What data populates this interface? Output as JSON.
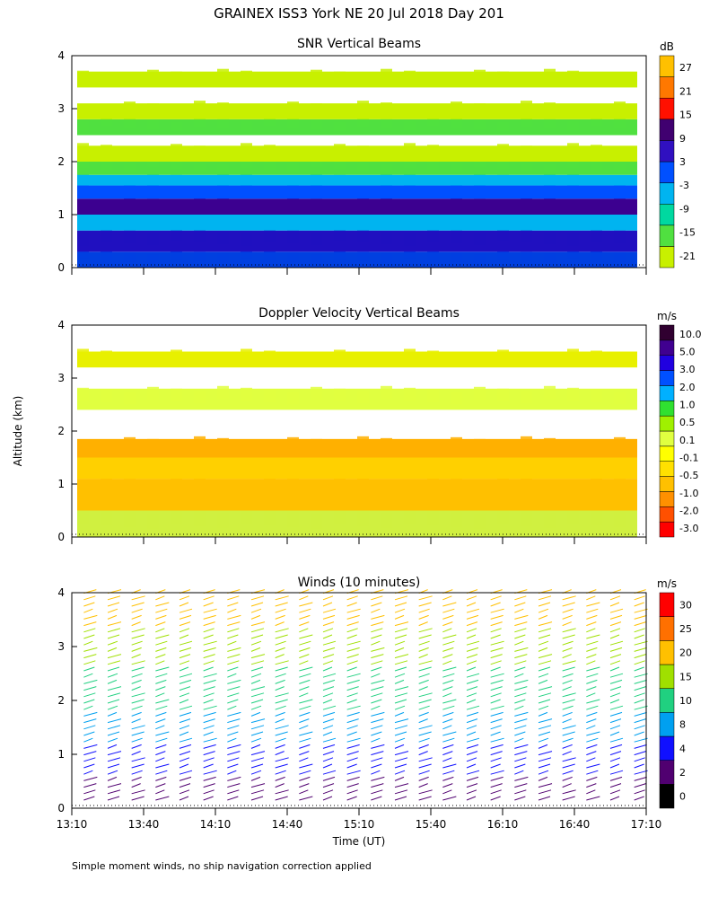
{
  "title": "GRAINEX ISS3 York NE  20 Jul 2018 Day 201",
  "y_axis_label": "Altitude (km)",
  "x_axis_label": "Time (UT)",
  "footnote": "Simple moment winds, no ship navigation correction applied",
  "chart_data": [
    {
      "type": "heatmap",
      "title": "SNR Vertical Beams",
      "unit": "dB",
      "x_ticks": [
        "13:10",
        "13:40",
        "14:10",
        "14:40",
        "15:10",
        "15:40",
        "16:10",
        "16:40",
        "17:10"
      ],
      "xlim_minutes": [
        0,
        240
      ],
      "ylim_km": [
        0,
        4
      ],
      "y_ticks": [
        0,
        1,
        2,
        3,
        4
      ],
      "data_top_km": 3.85,
      "colorbar": {
        "labels": [
          "27",
          "21",
          "15",
          "9",
          "3",
          "-3",
          "-9",
          "-15",
          "-21"
        ],
        "colors": [
          "#000000",
          "#3f0060",
          "#4a00a0",
          "#0000e0",
          "#0070ff",
          "#00b8f0",
          "#00d0a0",
          "#00c850",
          "#60e000",
          "#c0f000",
          "#f0f000",
          "#ffd000",
          "#ffa000",
          "#ff6000",
          "#ff0000"
        ],
        "segment_colors": [
          "#c8f000",
          "#50e040",
          "#00d8a0",
          "#00b4f0",
          "#0050ff",
          "#3010c0",
          "#400070",
          "#ff1000",
          "#ff7800",
          "#ffc000"
        ]
      },
      "profile": [
        {
          "z0": 0.0,
          "z1": 0.3,
          "c": "#0040e0"
        },
        {
          "z0": 0.3,
          "z1": 0.7,
          "c": "#2010c0"
        },
        {
          "z0": 0.7,
          "z1": 1.0,
          "c": "#00b4f0"
        },
        {
          "z0": 1.0,
          "z1": 1.3,
          "c": "#3c0090"
        },
        {
          "z0": 1.3,
          "z1": 1.55,
          "c": "#0050ff"
        },
        {
          "z0": 1.55,
          "z1": 1.75,
          "c": "#00b4f0"
        },
        {
          "z0": 1.75,
          "z1": 2.0,
          "c": "#50e040"
        },
        {
          "z0": 2.0,
          "z1": 2.3,
          "c": "#c8f000"
        },
        {
          "z0": 2.3,
          "z1": 2.5,
          "c": "#ffffff"
        },
        {
          "z0": 2.5,
          "z1": 2.8,
          "c": "#50e040"
        },
        {
          "z0": 2.8,
          "z1": 3.1,
          "c": "#c8f000"
        },
        {
          "z0": 3.1,
          "z1": 3.4,
          "c": "#ffffff"
        },
        {
          "z0": 3.4,
          "z1": 3.7,
          "c": "#c8f000"
        }
      ]
    },
    {
      "type": "heatmap",
      "title": "Doppler Velocity Vertical Beams",
      "unit": "m/s",
      "x_ticks": [
        "13:10",
        "13:40",
        "14:10",
        "14:40",
        "15:10",
        "15:40",
        "16:10",
        "16:40",
        "17:10"
      ],
      "xlim_minutes": [
        0,
        240
      ],
      "ylim_km": [
        0,
        4
      ],
      "y_ticks": [
        0,
        1,
        2,
        3,
        4
      ],
      "colorbar": {
        "labels": [
          "10.0",
          "5.0",
          "3.0",
          "2.0",
          "1.0",
          "0.5",
          "0.1",
          "-0.1",
          "-0.5",
          "-1.0",
          "-2.0",
          "-3.0"
        ],
        "segment_colors": [
          "#ff0000",
          "#ff5000",
          "#ff9000",
          "#ffc000",
          "#ffe000",
          "#ffff00",
          "#e0ff40",
          "#a0f000",
          "#30e030",
          "#00b0ff",
          "#0050ff",
          "#2000e0",
          "#400090",
          "#300030"
        ]
      },
      "profile": [
        {
          "z0": 0.0,
          "z1": 0.5,
          "c": "#d0f040"
        },
        {
          "z0": 0.5,
          "z1": 1.1,
          "c": "#ffc000"
        },
        {
          "z0": 1.1,
          "z1": 1.5,
          "c": "#ffd000"
        },
        {
          "z0": 1.5,
          "z1": 1.85,
          "c": "#ffb000"
        },
        {
          "z0": 1.85,
          "z1": 2.4,
          "c": "#ffffff"
        },
        {
          "z0": 2.4,
          "z1": 2.8,
          "c": "#e0ff40"
        },
        {
          "z0": 2.8,
          "z1": 3.2,
          "c": "#ffffff"
        },
        {
          "z0": 3.2,
          "z1": 3.5,
          "c": "#e8f000"
        }
      ]
    },
    {
      "type": "scatter",
      "title": "Winds (10 minutes)",
      "unit": "m/s",
      "x_ticks": [
        "13:10",
        "13:40",
        "14:10",
        "14:40",
        "15:10",
        "15:40",
        "16:10",
        "16:40",
        "17:10"
      ],
      "xlim_minutes": [
        0,
        240
      ],
      "ylim_km": [
        0,
        4
      ],
      "y_ticks": [
        0,
        1,
        2,
        3,
        4
      ],
      "profile_times_minutes": [
        5,
        15,
        25,
        35,
        45,
        55,
        65,
        75,
        85,
        95,
        105,
        115,
        125,
        135,
        145,
        155,
        165,
        175,
        185,
        195,
        205,
        215,
        225,
        235
      ],
      "colorbar": {
        "labels": [
          "30",
          "25",
          "20",
          "15",
          "10",
          "8",
          "4",
          "2",
          "0"
        ],
        "segment_colors": [
          "#000000",
          "#500070",
          "#1010ff",
          "#00a0f0",
          "#20d080",
          "#a0e000",
          "#ffc000",
          "#ff7000",
          "#ff0000"
        ]
      },
      "speed_by_altitude": [
        {
          "z0": 0.1,
          "z1": 0.6,
          "c": "#500070"
        },
        {
          "z0": 0.6,
          "z1": 1.2,
          "c": "#1010ff"
        },
        {
          "z0": 1.2,
          "z1": 1.8,
          "c": "#00a0f0"
        },
        {
          "z0": 1.8,
          "z1": 2.6,
          "c": "#20d080"
        },
        {
          "z0": 2.6,
          "z1": 3.3,
          "c": "#a0e000"
        },
        {
          "z0": 3.3,
          "z1": 4.1,
          "c": "#ffc000"
        }
      ]
    }
  ]
}
